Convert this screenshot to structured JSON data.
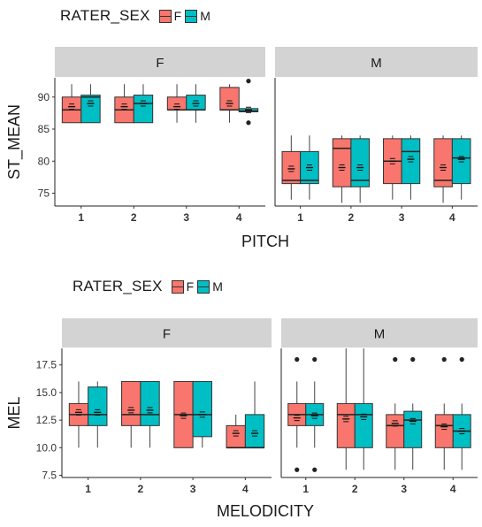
{
  "colors": {
    "F": "#F8766D",
    "M": "#00BFC4",
    "strip": "#d3d3d3"
  },
  "chart_data": [
    {
      "type": "boxplot",
      "legend": {
        "title": "RATER_SEX",
        "entries": [
          "F",
          "M"
        ]
      },
      "xlabel": "PITCH",
      "ylabel": "ST_MEAN",
      "ylim": [
        73,
        93
      ],
      "yticks": [
        75,
        80,
        85,
        90
      ],
      "facets": [
        {
          "label": "F",
          "categories": [
            "1",
            "2",
            "3",
            "4"
          ],
          "series": [
            {
              "name": "F",
              "boxes": [
                {
                  "q1": 86,
                  "median": 88,
                  "q3": 90,
                  "whisker_low": 86,
                  "whisker_high": 92,
                  "mean": 88.5,
                  "outliers": []
                },
                {
                  "q1": 86,
                  "median": 88,
                  "q3": 90,
                  "whisker_low": 86,
                  "whisker_high": 92,
                  "mean": 88.5,
                  "outliers": []
                },
                {
                  "q1": 88,
                  "median": 88,
                  "q3": 90,
                  "whisker_low": 86,
                  "whisker_high": 92,
                  "mean": 88.5,
                  "outliers": []
                },
                {
                  "q1": 88,
                  "median": 88,
                  "q3": 91.5,
                  "whisker_low": 86,
                  "whisker_high": 92,
                  "mean": 89,
                  "outliers": []
                }
              ]
            },
            {
              "name": "M",
              "boxes": [
                {
                  "q1": 86,
                  "median": 90,
                  "q3": 90.3,
                  "whisker_low": 86,
                  "whisker_high": 92,
                  "mean": 89,
                  "outliers": []
                },
                {
                  "q1": 86,
                  "median": 89,
                  "q3": 90.3,
                  "whisker_low": 86,
                  "whisker_high": 92,
                  "mean": 89,
                  "outliers": []
                },
                {
                  "q1": 88,
                  "median": 88,
                  "q3": 90.3,
                  "whisker_low": 86,
                  "whisker_high": 92,
                  "mean": 89,
                  "outliers": []
                },
                {
                  "q1": 87.7,
                  "median": 87.8,
                  "q3": 88.2,
                  "whisker_low": 87.7,
                  "whisker_high": 88.2,
                  "mean": 88,
                  "outliers": [
                    86,
                    92.5
                  ]
                }
              ]
            }
          ]
        },
        {
          "label": "M",
          "categories": [
            "1",
            "2",
            "3",
            "4"
          ],
          "series": [
            {
              "name": "F",
              "boxes": [
                {
                  "q1": 76.5,
                  "median": 77,
                  "q3": 81.5,
                  "whisker_low": 74,
                  "whisker_high": 84,
                  "mean": 78.8,
                  "outliers": []
                },
                {
                  "q1": 76,
                  "median": 82,
                  "q3": 83.5,
                  "whisker_low": 73.5,
                  "whisker_high": 84,
                  "mean": 79,
                  "outliers": []
                },
                {
                  "q1": 76.5,
                  "median": 80,
                  "q3": 83.5,
                  "whisker_low": 74,
                  "whisker_high": 84,
                  "mean": 80,
                  "outliers": []
                },
                {
                  "q1": 76,
                  "median": 77,
                  "q3": 83.5,
                  "whisker_low": 73.5,
                  "whisker_high": 84,
                  "mean": 79,
                  "outliers": []
                }
              ]
            },
            {
              "name": "M",
              "boxes": [
                {
                  "q1": 76.5,
                  "median": 77,
                  "q3": 81.5,
                  "whisker_low": 74,
                  "whisker_high": 84,
                  "mean": 79,
                  "outliers": []
                },
                {
                  "q1": 76,
                  "median": 77,
                  "q3": 83.5,
                  "whisker_low": 73.5,
                  "whisker_high": 84,
                  "mean": 79,
                  "outliers": []
                },
                {
                  "q1": 76.5,
                  "median": 81.5,
                  "q3": 83.5,
                  "whisker_low": 74,
                  "whisker_high": 84,
                  "mean": 80.3,
                  "outliers": []
                },
                {
                  "q1": 76.5,
                  "median": 80.5,
                  "q3": 83.5,
                  "whisker_low": 74,
                  "whisker_high": 84,
                  "mean": 80.3,
                  "outliers": []
                }
              ]
            }
          ]
        }
      ]
    },
    {
      "type": "boxplot",
      "legend": {
        "title": "RATER_SEX",
        "entries": [
          "F",
          "M"
        ]
      },
      "xlabel": "MELODICITY",
      "ylabel": "MEL",
      "ylim": [
        7.3,
        19
      ],
      "yticks": [
        7.5,
        10.0,
        12.5,
        15.0,
        17.5
      ],
      "ytick_labels": [
        "7.5",
        "10.0",
        "12.5",
        "15.0",
        "17.5"
      ],
      "facets": [
        {
          "label": "F",
          "categories": [
            "1",
            "2",
            "3",
            "4"
          ],
          "series": [
            {
              "name": "F",
              "boxes": [
                {
                  "q1": 12,
                  "median": 13,
                  "q3": 14,
                  "whisker_low": 10,
                  "whisker_high": 16,
                  "mean": 13.2,
                  "outliers": []
                },
                {
                  "q1": 12,
                  "median": 13,
                  "q3": 16,
                  "whisker_low": 10,
                  "whisker_high": 16,
                  "mean": 13.4,
                  "outliers": []
                },
                {
                  "q1": 10,
                  "median": 13,
                  "q3": 16,
                  "whisker_low": 10,
                  "whisker_high": 16,
                  "mean": 12.9,
                  "outliers": []
                },
                {
                  "q1": 10,
                  "median": 10,
                  "q3": 12,
                  "whisker_low": 10,
                  "whisker_high": 13,
                  "mean": 11.3,
                  "outliers": []
                }
              ]
            },
            {
              "name": "M",
              "boxes": [
                {
                  "q1": 12,
                  "median": 13,
                  "q3": 15.5,
                  "whisker_low": 10,
                  "whisker_high": 16,
                  "mean": 13.2,
                  "outliers": []
                },
                {
                  "q1": 12,
                  "median": 13,
                  "q3": 16,
                  "whisker_low": 10,
                  "whisker_high": 16,
                  "mean": 13.4,
                  "outliers": []
                },
                {
                  "q1": 11,
                  "median": 13,
                  "q3": 16,
                  "whisker_low": 10,
                  "whisker_high": 16,
                  "mean": 13,
                  "outliers": []
                },
                {
                  "q1": 10,
                  "median": 10,
                  "q3": 13,
                  "whisker_low": 10,
                  "whisker_high": 16,
                  "mean": 11.3,
                  "outliers": []
                }
              ]
            }
          ]
        },
        {
          "label": "M",
          "categories": [
            "1",
            "2",
            "3",
            "4"
          ],
          "series": [
            {
              "name": "F",
              "boxes": [
                {
                  "q1": 12,
                  "median": 13,
                  "q3": 14,
                  "whisker_low": 10,
                  "whisker_high": 16,
                  "mean": 12.7,
                  "outliers": [
                    8,
                    18
                  ]
                },
                {
                  "q1": 10,
                  "median": 13,
                  "q3": 14,
                  "whisker_low": 8,
                  "whisker_high": 19,
                  "mean": 12.6,
                  "outliers": []
                },
                {
                  "q1": 10,
                  "median": 12,
                  "q3": 13,
                  "whisker_low": 8,
                  "whisker_high": 14,
                  "mean": 12.2,
                  "outliers": [
                    18
                  ]
                },
                {
                  "q1": 10,
                  "median": 12,
                  "q3": 13,
                  "whisker_low": 8,
                  "whisker_high": 14,
                  "mean": 11.9,
                  "outliers": [
                    18
                  ]
                }
              ]
            },
            {
              "name": "M",
              "boxes": [
                {
                  "q1": 12,
                  "median": 13,
                  "q3": 14,
                  "whisker_low": 10,
                  "whisker_high": 16,
                  "mean": 12.9,
                  "outliers": [
                    8,
                    18
                  ]
                },
                {
                  "q1": 10,
                  "median": 13,
                  "q3": 14,
                  "whisker_low": 8,
                  "whisker_high": 19,
                  "mean": 12.8,
                  "outliers": []
                },
                {
                  "q1": 10,
                  "median": 12.5,
                  "q3": 13.3,
                  "whisker_low": 8,
                  "whisker_high": 14,
                  "mean": 12.4,
                  "outliers": [
                    18
                  ]
                },
                {
                  "q1": 10,
                  "median": 11.5,
                  "q3": 13,
                  "whisker_low": 8,
                  "whisker_high": 14,
                  "mean": 11.5,
                  "outliers": [
                    18
                  ]
                }
              ]
            }
          ]
        }
      ]
    }
  ]
}
